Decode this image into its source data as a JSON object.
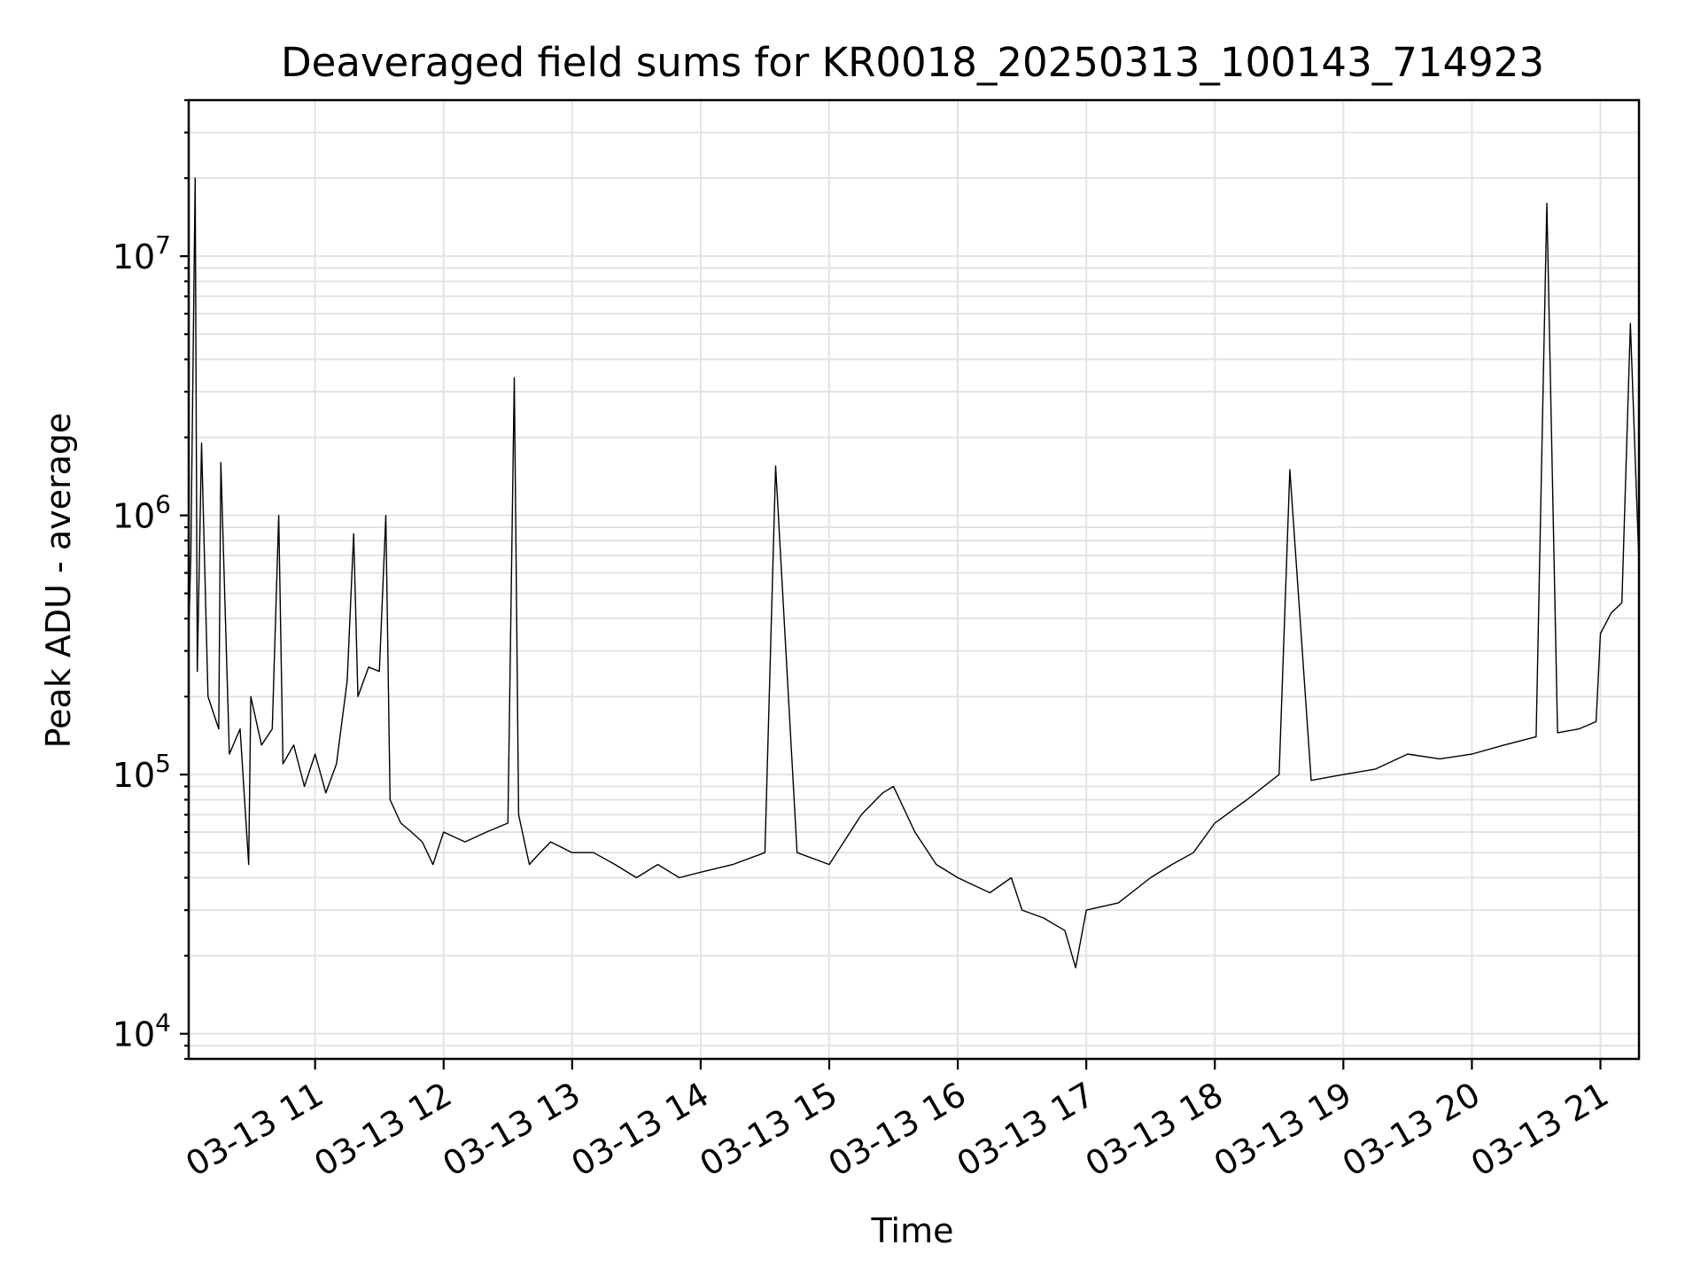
{
  "chart_data": {
    "type": "line",
    "title": "Deaveraged field sums for KR0018_20250313_100143_714923",
    "xlabel": "Time",
    "ylabel": "Peak ADU - average",
    "yscale": "log",
    "xlim": [
      "2025-03-13 10:01",
      "2025-03-13 21:18"
    ],
    "ylim": [
      8000,
      40000000
    ],
    "x_ticks": [
      "03-13 11",
      "03-13 12",
      "03-13 13",
      "03-13 14",
      "03-13 15",
      "03-13 16",
      "03-13 17",
      "03-13 18",
      "03-13 19",
      "03-13 20",
      "03-13 21"
    ],
    "x_tick_times": [
      "2025-03-13 11:00",
      "2025-03-13 12:00",
      "2025-03-13 13:00",
      "2025-03-13 14:00",
      "2025-03-13 15:00",
      "2025-03-13 16:00",
      "2025-03-13 17:00",
      "2025-03-13 18:00",
      "2025-03-13 19:00",
      "2025-03-13 20:00",
      "2025-03-13 21:00"
    ],
    "y_ticks": [
      {
        "value": 10000,
        "base": "10",
        "exp": "4"
      },
      {
        "value": 100000,
        "base": "10",
        "exp": "5"
      },
      {
        "value": 1000000,
        "base": "10",
        "exp": "6"
      },
      {
        "value": 10000000,
        "base": "10",
        "exp": "7"
      }
    ],
    "grid": true,
    "grid_minor_y": true,
    "line_color": "#000000",
    "series": [
      {
        "x": [
          "2025-03-13 10:01",
          "2025-03-13 10:02",
          "2025-03-13 10:04",
          "2025-03-13 10:05",
          "2025-03-13 10:07",
          "2025-03-13 10:10",
          "2025-03-13 10:15",
          "2025-03-13 10:16",
          "2025-03-13 10:20",
          "2025-03-13 10:25",
          "2025-03-13 10:29",
          "2025-03-13 10:30",
          "2025-03-13 10:35",
          "2025-03-13 10:40",
          "2025-03-13 10:43",
          "2025-03-13 10:45",
          "2025-03-13 10:50",
          "2025-03-13 10:55",
          "2025-03-13 11:00",
          "2025-03-13 11:05",
          "2025-03-13 11:10",
          "2025-03-13 11:15",
          "2025-03-13 11:18",
          "2025-03-13 11:20",
          "2025-03-13 11:25",
          "2025-03-13 11:30",
          "2025-03-13 11:33",
          "2025-03-13 11:35",
          "2025-03-13 11:40",
          "2025-03-13 11:45",
          "2025-03-13 11:50",
          "2025-03-13 11:55",
          "2025-03-13 12:00",
          "2025-03-13 12:10",
          "2025-03-13 12:20",
          "2025-03-13 12:30",
          "2025-03-13 12:33",
          "2025-03-13 12:35",
          "2025-03-13 12:40",
          "2025-03-13 12:45",
          "2025-03-13 12:50",
          "2025-03-13 13:00",
          "2025-03-13 13:10",
          "2025-03-13 13:20",
          "2025-03-13 13:30",
          "2025-03-13 13:40",
          "2025-03-13 13:50",
          "2025-03-13 14:00",
          "2025-03-13 14:15",
          "2025-03-13 14:30",
          "2025-03-13 14:35",
          "2025-03-13 14:45",
          "2025-03-13 15:00",
          "2025-03-13 15:15",
          "2025-03-13 15:25",
          "2025-03-13 15:30",
          "2025-03-13 15:40",
          "2025-03-13 15:50",
          "2025-03-13 16:00",
          "2025-03-13 16:15",
          "2025-03-13 16:25",
          "2025-03-13 16:30",
          "2025-03-13 16:40",
          "2025-03-13 16:50",
          "2025-03-13 16:55",
          "2025-03-13 17:00",
          "2025-03-13 17:15",
          "2025-03-13 17:30",
          "2025-03-13 17:40",
          "2025-03-13 17:50",
          "2025-03-13 18:00",
          "2025-03-13 18:15",
          "2025-03-13 18:30",
          "2025-03-13 18:35",
          "2025-03-13 18:45",
          "2025-03-13 19:00",
          "2025-03-13 19:15",
          "2025-03-13 19:30",
          "2025-03-13 19:45",
          "2025-03-13 20:00",
          "2025-03-13 20:15",
          "2025-03-13 20:30",
          "2025-03-13 20:35",
          "2025-03-13 20:40",
          "2025-03-13 20:50",
          "2025-03-13 20:58",
          "2025-03-13 21:00",
          "2025-03-13 21:05",
          "2025-03-13 21:10",
          "2025-03-13 21:14",
          "2025-03-13 21:18"
        ],
        "y": [
          350000,
          700000,
          20000000,
          250000,
          1900000,
          200000,
          150000,
          1600000,
          120000,
          150000,
          45000,
          200000,
          130000,
          150000,
          1000000,
          110000,
          130000,
          90000,
          120000,
          85000,
          110000,
          230000,
          850000,
          200000,
          260000,
          250000,
          1000000,
          80000,
          65000,
          60000,
          55000,
          45000,
          60000,
          55000,
          60000,
          65000,
          3400000,
          70000,
          45000,
          50000,
          55000,
          50000,
          50000,
          45000,
          40000,
          45000,
          40000,
          42000,
          45000,
          50000,
          1550000,
          50000,
          45000,
          70000,
          85000,
          90000,
          60000,
          45000,
          40000,
          35000,
          40000,
          30000,
          28000,
          25000,
          18000,
          30000,
          32000,
          40000,
          45000,
          50000,
          65000,
          80000,
          100000,
          1500000,
          95000,
          100000,
          105000,
          120000,
          115000,
          120000,
          130000,
          140000,
          16000000,
          145000,
          150000,
          160000,
          350000,
          420000,
          460000,
          5500000,
          650000
        ]
      }
    ]
  }
}
